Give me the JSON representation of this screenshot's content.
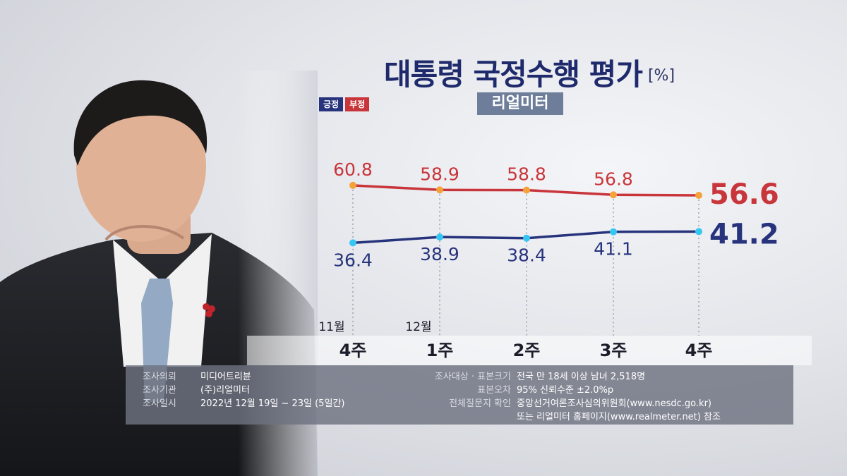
{
  "header": {
    "title": "대통령 국정수행 평가",
    "unit": "[%]",
    "source_badge": "리얼미터"
  },
  "legend": {
    "positive": "긍정",
    "negative": "부정"
  },
  "colors": {
    "positive": "#27337c",
    "negative": "#c8353a",
    "positive_marker": "#36c6f2",
    "negative_marker": "#f4a23a"
  },
  "chart_data": {
    "type": "line",
    "title": "대통령 국정수행 평가",
    "unit": "%",
    "month_labels": [
      "11월",
      "12월",
      "",
      "",
      ""
    ],
    "categories": [
      "4주",
      "1주",
      "2주",
      "3주",
      "4주"
    ],
    "series": [
      {
        "name": "부정",
        "values": [
          60.8,
          58.9,
          58.8,
          56.8,
          56.6
        ]
      },
      {
        "name": "긍정",
        "values": [
          36.4,
          38.9,
          38.4,
          41.1,
          41.2
        ]
      }
    ]
  },
  "info": {
    "left": [
      {
        "label": "조사의뢰",
        "value": "미디어트리뷴"
      },
      {
        "label": "조사기관",
        "value": "(주)리얼미터"
      },
      {
        "label": "조사일시",
        "value": "2022년 12월 19일 ~ 23일 (5일간)"
      }
    ],
    "right": [
      {
        "label": "조사대상 · 표본크기",
        "value": "전국 만 18세 이상 남녀 2,518명"
      },
      {
        "label": "표본오차",
        "value": "95% 신뢰수준 ±2.0%p"
      },
      {
        "label": "전체질문지 확인",
        "value": "중앙선거여론조사심의위원회(www.nesdc.go.kr)"
      },
      {
        "label": "",
        "value": "또는 리얼미터 홈페이지(www.realmeter.net) 참조"
      }
    ]
  }
}
